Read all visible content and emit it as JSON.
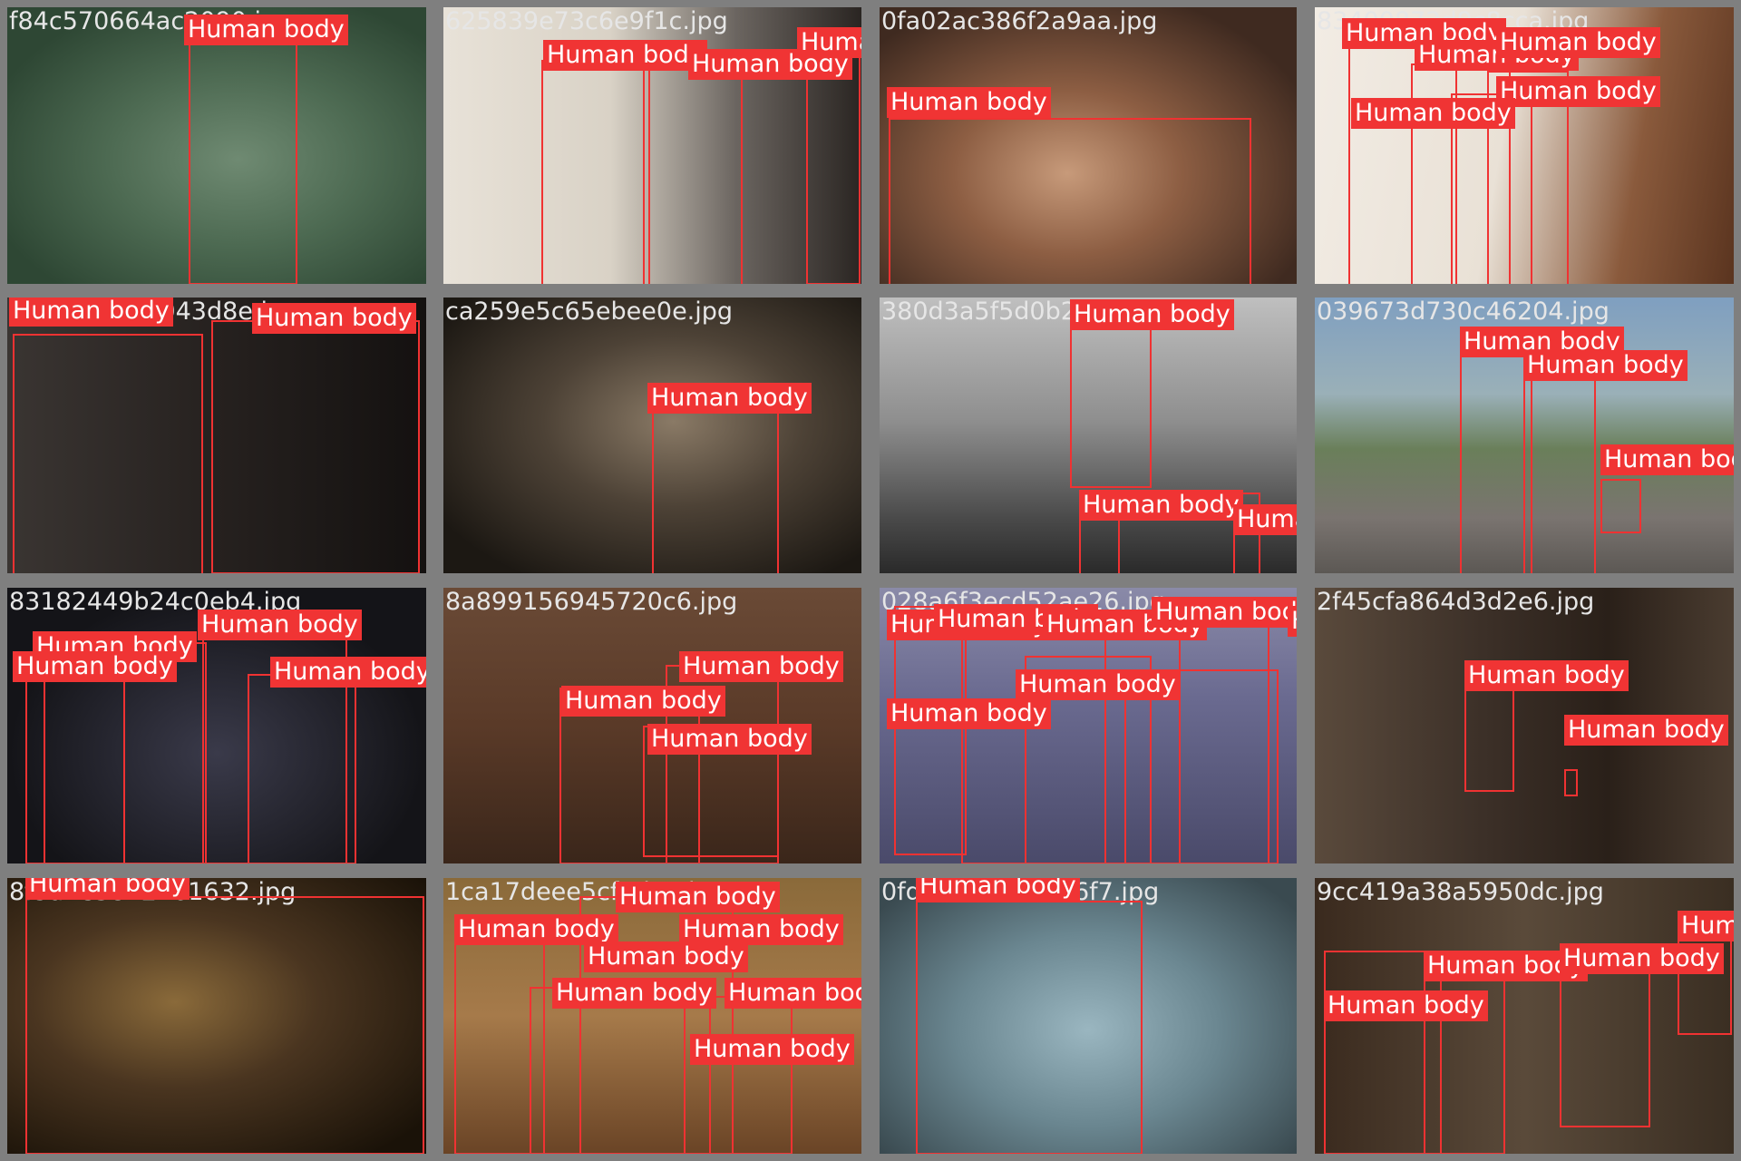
{
  "label_text": "Human body",
  "colors": {
    "box": "#f03232",
    "label_bg": "#f03434",
    "label_fg": "#ffffff",
    "grid_bg": "#7f7f7f"
  },
  "tiles": [
    {
      "filename": "f84c570664ac2090.jpg"
    },
    {
      "filename": "625839e73c6e9f1c.jpg"
    },
    {
      "filename": "0fa02ac386f2a9aa.jpg"
    },
    {
      "filename": "83400872d9c8cca.jpg"
    },
    {
      "filename": "033ddca2c2043d8e.jpg"
    },
    {
      "filename": "ca259e5c65ebee0e.jpg"
    },
    {
      "filename": "380d3a5f5d0b2a1c.jpg"
    },
    {
      "filename": "039673d730c46204.jpg"
    },
    {
      "filename": "83182449b24c0eb4.jpg"
    },
    {
      "filename": "8a899156945720c6.jpg"
    },
    {
      "filename": "028a6f3ecd52ae26.jpg"
    },
    {
      "filename": "2f45cfa864d3d2e6.jpg"
    },
    {
      "filename": "8f3ade5842761632.jpg"
    },
    {
      "filename": "1ca17deee5cf4d1a.jpg"
    },
    {
      "filename": "0fd1a2b3c4d5e6f7.jpg"
    },
    {
      "filename": "9cc419a38a5950dc.jpg"
    }
  ]
}
